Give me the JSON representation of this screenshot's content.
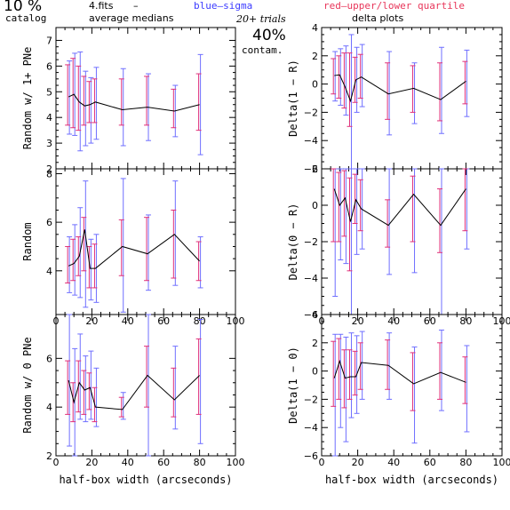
{
  "header": {
    "pct": "10 %",
    "catalog": "catalog",
    "fits": "4.fits",
    "dash": "–",
    "avg_medians": "average medians",
    "blue_sigma": "blue–sigma",
    "red_quartile": "red–upper/lower quartile",
    "trials": "20+ trials",
    "delta_plots": "delta plots",
    "contam_pct": "40%",
    "contam": "contam."
  },
  "colors": {
    "median_line": "#000000",
    "sigma": "#6f6fff",
    "quartile": "#e0307a",
    "axis": "#000000"
  },
  "chart_data": [
    {
      "type": "line",
      "panel": "left-top",
      "xlabel": "",
      "ylabel": "Random w/ 1+ PNe",
      "xlim": [
        0,
        100
      ],
      "ylim": [
        2,
        7.5
      ],
      "xticks": [
        0,
        20,
        40,
        60,
        80,
        100
      ],
      "xtick_labels_shown": false,
      "yticks": [
        2,
        3,
        4,
        5,
        6,
        7
      ],
      "ytick_labels": [
        "2",
        "3",
        "4",
        "5",
        "6",
        "7"
      ],
      "x": [
        7,
        10,
        13,
        16,
        19,
        22,
        37,
        51,
        66,
        80
      ],
      "y": [
        4.8,
        4.9,
        4.6,
        4.45,
        4.5,
        4.6,
        4.3,
        4.4,
        4.25,
        4.5
      ],
      "sigma_low": [
        3.35,
        3.3,
        2.7,
        2.9,
        3.0,
        3.15,
        2.9,
        3.1,
        3.25,
        2.55
      ],
      "sigma_high": [
        6.2,
        6.5,
        6.55,
        5.8,
        5.55,
        5.95,
        5.9,
        5.7,
        5.25,
        6.45
      ],
      "quart_low": [
        3.7,
        3.6,
        3.5,
        3.7,
        3.8,
        3.8,
        3.7,
        3.7,
        3.6,
        3.5
      ],
      "quart_high": [
        6.05,
        6.3,
        6.0,
        5.6,
        5.4,
        5.5,
        5.5,
        5.6,
        5.1,
        5.7
      ]
    },
    {
      "type": "line",
      "panel": "left-middle",
      "xlabel": "",
      "ylabel": "Random",
      "xlim": [
        0,
        100
      ],
      "ylim": [
        2.2,
        8.2
      ],
      "xticks": [
        0,
        20,
        40,
        60,
        80,
        100
      ],
      "xtick_labels_shown": true,
      "xtick_labels": [
        "0",
        "20",
        "40",
        "60",
        "80",
        "100"
      ],
      "yticks": [
        4,
        6,
        8
      ],
      "ytick_labels": [
        "4",
        "6",
        "8"
      ],
      "x": [
        7,
        10,
        13,
        16,
        19,
        22,
        37,
        51,
        66,
        80
      ],
      "y": [
        4.2,
        4.3,
        4.6,
        5.7,
        4.1,
        4.1,
        5.0,
        4.7,
        5.5,
        4.4
      ],
      "sigma_low": [
        3.1,
        3.0,
        2.9,
        2.5,
        2.8,
        2.7,
        2.3,
        3.2,
        3.4,
        3.3
      ],
      "sigma_high": [
        5.4,
        5.9,
        6.6,
        7.7,
        5.3,
        5.5,
        7.8,
        6.3,
        7.7,
        5.4
      ],
      "quart_low": [
        3.5,
        3.6,
        3.8,
        4.0,
        3.3,
        3.3,
        3.8,
        3.6,
        3.7,
        3.6
      ],
      "quart_high": [
        5.0,
        5.3,
        5.4,
        6.2,
        5.0,
        5.1,
        6.1,
        6.2,
        6.5,
        5.2
      ]
    },
    {
      "type": "line",
      "panel": "left-bottom",
      "xlabel": "half-box width (arcseconds)",
      "ylabel": "Random w/ 0 PNe",
      "xlim": [
        0,
        100
      ],
      "ylim": [
        2,
        7.8
      ],
      "xticks": [
        0,
        20,
        40,
        60,
        80,
        100
      ],
      "xtick_labels_shown": true,
      "xtick_labels": [
        "0",
        "20",
        "40",
        "60",
        "80",
        "100"
      ],
      "yticks": [
        2,
        4,
        6
      ],
      "ytick_labels": [
        "2",
        "4",
        "6"
      ],
      "x": [
        7,
        10,
        13,
        16,
        19,
        22,
        37,
        51,
        66,
        80
      ],
      "y": [
        5.1,
        4.2,
        5.0,
        4.7,
        4.8,
        4.0,
        3.9,
        5.3,
        4.3,
        5.3
      ],
      "sigma_low": [
        2.4,
        2.0,
        3.5,
        3.4,
        3.5,
        3.2,
        3.5,
        2.0,
        3.1,
        2.5
      ],
      "sigma_high": [
        7.8,
        6.4,
        7.0,
        6.1,
        6.3,
        5.6,
        4.6,
        7.8,
        6.5,
        7.6
      ],
      "quart_low": [
        3.7,
        3.4,
        3.8,
        3.7,
        3.9,
        3.4,
        3.6,
        4.0,
        3.6,
        3.7
      ],
      "quart_high": [
        5.9,
        5.0,
        5.9,
        5.5,
        5.4,
        4.8,
        4.4,
        6.5,
        5.6,
        6.8
      ]
    },
    {
      "type": "line",
      "panel": "right-top",
      "xlabel": "",
      "ylabel": "Delta(1 − R)",
      "xlim": [
        0,
        100
      ],
      "ylim": [
        -6,
        4
      ],
      "xticks": [
        0,
        20,
        40,
        60,
        80,
        100
      ],
      "xtick_labels_shown": false,
      "yticks": [
        -6,
        -4,
        -2,
        0,
        2,
        4
      ],
      "ytick_labels": [
        "−6",
        "−4",
        "−2",
        "0",
        "2",
        "4"
      ],
      "x": [
        7,
        10,
        13,
        16,
        19,
        22,
        37,
        51,
        66,
        80
      ],
      "y": [
        0.6,
        0.65,
        -0.2,
        -1.2,
        0.3,
        0.5,
        -0.7,
        -0.3,
        -1.1,
        0.2
      ],
      "sigma_low": [
        -1.2,
        -1.5,
        -2.2,
        -6.0,
        -2.0,
        -1.6,
        -3.6,
        -2.8,
        -3.5,
        -2.3
      ],
      "sigma_high": [
        2.3,
        2.5,
        2.7,
        3.5,
        2.6,
        2.8,
        2.3,
        1.5,
        2.6,
        2.4
      ],
      "quart_low": [
        -0.7,
        -1.0,
        -1.7,
        -3.0,
        -1.3,
        -1.0,
        -2.5,
        -2.0,
        -2.6,
        -1.4
      ],
      "quart_high": [
        1.8,
        2.0,
        2.2,
        2.2,
        1.9,
        2.1,
        1.5,
        1.3,
        1.5,
        1.6
      ]
    },
    {
      "type": "line",
      "panel": "right-middle",
      "xlabel": "",
      "ylabel": "Delta(0 − R)",
      "xlim": [
        0,
        100
      ],
      "ylim": [
        -6,
        2
      ],
      "xticks": [
        0,
        20,
        40,
        60,
        80,
        100
      ],
      "xtick_labels_shown": true,
      "xtick_labels": [
        "0",
        "20",
        "40",
        "60",
        "80",
        "100"
      ],
      "yticks": [
        -6,
        -4,
        -2,
        0,
        2
      ],
      "ytick_labels": [
        "−6",
        "−4",
        "−2",
        "0",
        "2"
      ],
      "x": [
        7,
        10,
        13,
        16,
        19,
        22,
        37,
        51,
        66,
        80
      ],
      "y": [
        0.9,
        0.0,
        0.4,
        -0.9,
        0.3,
        -0.2,
        -1.1,
        0.6,
        -1.1,
        0.9
      ],
      "sigma_low": [
        -5.0,
        -3.0,
        -3.2,
        -6.0,
        -2.7,
        -2.4,
        -3.8,
        -3.7,
        -6.0,
        -2.4
      ],
      "sigma_high": [
        2.0,
        2.0,
        2.0,
        2.0,
        2.0,
        2.0,
        2.0,
        2.0,
        2.0,
        2.0
      ],
      "quart_low": [
        -2.0,
        -2.0,
        -1.7,
        -3.6,
        -1.0,
        -1.4,
        -2.3,
        -2.0,
        -2.6,
        -1.4
      ],
      "quart_high": [
        2.0,
        1.8,
        1.9,
        1.5,
        1.7,
        1.4,
        0.3,
        1.6,
        0.9,
        2.0
      ]
    },
    {
      "type": "line",
      "panel": "right-bottom",
      "xlabel": "half-box width (arcseconds)",
      "ylabel": "Delta(1 − 0)",
      "xlim": [
        0,
        100
      ],
      "ylim": [
        -6,
        4
      ],
      "xticks": [
        0,
        20,
        40,
        60,
        80,
        100
      ],
      "xtick_labels_shown": true,
      "xtick_labels": [
        "0",
        "20",
        "40",
        "60",
        "80",
        "100"
      ],
      "yticks": [
        -6,
        -4,
        -2,
        0,
        2,
        4
      ],
      "ytick_labels": [
        "−6",
        "−4",
        "−2",
        "0",
        "2",
        "4"
      ],
      "x": [
        7,
        10,
        13,
        16,
        19,
        22,
        37,
        51,
        66,
        80
      ],
      "y": [
        -0.5,
        0.7,
        -0.5,
        -0.4,
        -0.4,
        0.6,
        0.4,
        -0.9,
        -0.1,
        -0.8
      ],
      "sigma_low": [
        -6.0,
        -4.0,
        -5.0,
        -3.3,
        -3.0,
        -2.0,
        -2.0,
        -5.1,
        -2.8,
        -4.3
      ],
      "sigma_high": [
        2.6,
        2.6,
        2.4,
        2.7,
        2.5,
        2.8,
        2.7,
        1.7,
        2.9,
        1.8
      ],
      "quart_low": [
        -2.5,
        -2.0,
        -2.6,
        -2.0,
        -1.7,
        -1.3,
        -1.3,
        -2.8,
        -2.0,
        -2.3
      ],
      "quart_high": [
        2.1,
        2.3,
        1.5,
        1.5,
        1.4,
        2.0,
        2.2,
        1.3,
        2.0,
        1.0
      ]
    }
  ]
}
